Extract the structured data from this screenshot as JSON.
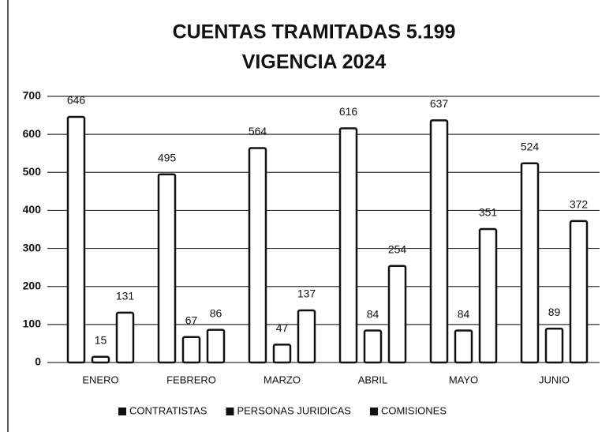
{
  "chart_data": {
    "type": "bar",
    "title": "CUENTAS TRAMITADAS 5.199",
    "subtitle": "VIGENCIA 2024",
    "categories": [
      "ENERO",
      "FEBRERO",
      "MARZO",
      "ABRIL",
      "MAYO",
      "JUNIO"
    ],
    "series": [
      {
        "name": "CONTRATISTAS",
        "color": "#111111",
        "values": [
          646,
          495,
          564,
          616,
          637,
          524
        ]
      },
      {
        "name": "PERSONAS JURIDICAS",
        "color": "#111111",
        "values": [
          15,
          67,
          47,
          84,
          84,
          89
        ]
      },
      {
        "name": "COMISIONES",
        "color": "#111111",
        "values": [
          131,
          86,
          137,
          254,
          351,
          372
        ]
      }
    ],
    "ylim": [
      0,
      700
    ],
    "yticks": [
      0,
      100,
      200,
      300,
      400,
      500,
      600,
      700
    ],
    "grid": true,
    "legend": "bottom"
  }
}
